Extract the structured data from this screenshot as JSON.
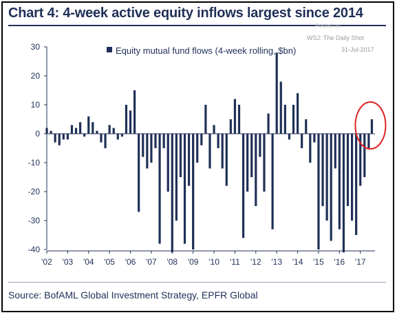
{
  "header": {
    "title": "Chart 4: 4-week active equity inflows largest since 2014"
  },
  "watermark": {
    "posted": "Posted on",
    "wsj": "WSJ: The Daily Shot",
    "date": "31-Jul-2017"
  },
  "footer": {
    "source": "Source: BofAML Global Investment Strategy, EPFR Global"
  },
  "colors": {
    "bar": "#1f2f57",
    "axis": "#1f2f57",
    "highlight_circle": "#e02020"
  },
  "chart_data": {
    "type": "bar",
    "title": "Chart 4: 4-week active equity inflows largest since 2014",
    "xlabel": "",
    "ylabel": "",
    "ylim": [
      -40,
      30
    ],
    "yticks": [
      -40,
      -30,
      -20,
      -10,
      0,
      10,
      20,
      30
    ],
    "x_tick_labels": [
      "'02",
      "'03",
      "'04",
      "'05",
      "'06",
      "'07",
      "'08",
      "'09",
      "'10",
      "'11",
      "'12",
      "'13",
      "'14",
      "'15",
      "'16",
      "'17"
    ],
    "x_range": [
      2002,
      2017.7
    ],
    "legend": {
      "position": "top-right",
      "label": "Equity mutual fund flows (4-week rolling, $bn)"
    },
    "grid": false,
    "highlight": {
      "x": 2017.55,
      "y": 0,
      "shape": "circle"
    },
    "series": [
      {
        "name": "Equity mutual fund flows (4-week rolling, $bn)",
        "x": [
          2002.0,
          2002.2,
          2002.4,
          2002.6,
          2002.8,
          2003.0,
          2003.2,
          2003.4,
          2003.6,
          2003.8,
          2004.0,
          2004.2,
          2004.4,
          2004.6,
          2004.8,
          2005.0,
          2005.2,
          2005.4,
          2005.6,
          2005.8,
          2006.0,
          2006.2,
          2006.4,
          2006.6,
          2006.8,
          2007.0,
          2007.2,
          2007.4,
          2007.6,
          2007.8,
          2008.0,
          2008.2,
          2008.4,
          2008.6,
          2008.8,
          2009.0,
          2009.2,
          2009.4,
          2009.6,
          2009.8,
          2010.0,
          2010.2,
          2010.4,
          2010.6,
          2010.8,
          2011.0,
          2011.2,
          2011.4,
          2011.6,
          2011.8,
          2012.0,
          2012.2,
          2012.4,
          2012.6,
          2012.8,
          2013.0,
          2013.2,
          2013.4,
          2013.6,
          2013.8,
          2014.0,
          2014.2,
          2014.4,
          2014.6,
          2014.8,
          2015.0,
          2015.2,
          2015.4,
          2015.6,
          2015.8,
          2016.0,
          2016.2,
          2016.4,
          2016.6,
          2016.8,
          2017.0,
          2017.2,
          2017.4,
          2017.55
        ],
        "values": [
          2,
          1,
          -3,
          -4,
          -2,
          -2,
          3,
          2,
          4,
          -1,
          6,
          4,
          1,
          -3,
          -5,
          3,
          2,
          -2,
          -1,
          10,
          8,
          15,
          -27,
          -8,
          -12,
          -10,
          -5,
          -38,
          -5,
          -20,
          -41,
          -30,
          -15,
          -38,
          -18,
          -40,
          -10,
          -4,
          10,
          -12,
          3,
          -5,
          -12,
          -18,
          5,
          12,
          10,
          -36,
          -20,
          -15,
          -25,
          -8,
          -20,
          7,
          -33,
          28,
          18,
          10,
          -2,
          10,
          14,
          -5,
          5,
          -10,
          -3,
          -40,
          -25,
          -30,
          -37,
          -12,
          -33,
          -41,
          -25,
          -30,
          -35,
          -18,
          -15,
          -5,
          5
        ]
      }
    ]
  }
}
